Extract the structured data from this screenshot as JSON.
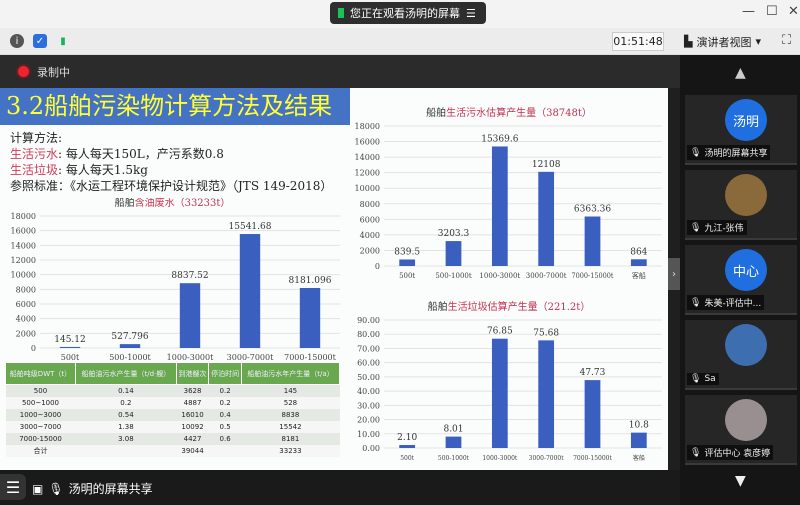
{
  "window": {
    "notice": "您正在观看汤明的屏幕",
    "minimize": "—",
    "maximize": "☐",
    "close": "✕"
  },
  "toolbar": {
    "timer": "01:51:48",
    "view_button": "演讲者视图",
    "view_caret": "▾",
    "fullscreen": "⛶"
  },
  "recording": {
    "label": "录制中"
  },
  "slide": {
    "title": "3.2船舶污染物计算方法及结果",
    "method_heading": "计算方法:",
    "lines": [
      {
        "label": "生活污水",
        "text": ":  每人每天150L，产污系数0.8"
      },
      {
        "label": "生活垃圾",
        "text": ":  每人每天1.5kg"
      },
      {
        "label": "",
        "text": "参照标准：《水运工程环境保护设计规范》（JTS 149-2018）"
      }
    ],
    "table": {
      "headers": [
        "船舶吨级DWT（t）",
        "船舶油污水产生量（t/d·艘）",
        "到港艘次",
        "停泊时间",
        "船舶油污水年产生量（t/a）"
      ],
      "rows": [
        [
          "500",
          "0.14",
          "3628",
          "0.2",
          "145"
        ],
        [
          "500~1000",
          "0.2",
          "4887",
          "0.2",
          "528"
        ],
        [
          "1000~3000",
          "0.54",
          "16010",
          "0.4",
          "8838"
        ],
        [
          "3000~7000",
          "1.38",
          "10092",
          "0.5",
          "15542"
        ],
        [
          "7000-15000",
          "3.08",
          "4427",
          "0.6",
          "8181"
        ],
        [
          "合计",
          "",
          "39044",
          "",
          "33233"
        ]
      ]
    }
  },
  "chart_data": [
    {
      "type": "bar",
      "title_pre": "船舶",
      "title_red": "含油废水",
      "title_post": "（33233t）",
      "categories": [
        "500t",
        "500-1000t",
        "1000-3000t",
        "3000-7000t",
        "7000-15000t"
      ],
      "values": [
        145.12,
        527.796,
        8837.52,
        15541.68,
        8181.096
      ],
      "labels": [
        "145.12",
        "527.796",
        "8837.52",
        "15541.68",
        "8181.096"
      ],
      "ylim": [
        0,
        18000
      ],
      "yticks": [
        "0",
        "2000",
        "4000",
        "6000",
        "8000",
        "10000",
        "12000",
        "14000",
        "16000",
        "18000"
      ],
      "color": "#3a5fbf"
    },
    {
      "type": "bar",
      "title_pre": "船舶",
      "title_red": "生活污水",
      "title_post": "估算产生量（38748t）",
      "categories": [
        "500t",
        "500-1000t",
        "1000-3000t",
        "3000-7000t",
        "7000-15000t",
        "客船"
      ],
      "values": [
        839.5,
        3203.3,
        15369.6,
        12108,
        6363.36,
        864
      ],
      "labels": [
        "839.5",
        "3203.3",
        "15369.6",
        "12108",
        "6363.36",
        "864"
      ],
      "ylim": [
        0,
        18000
      ],
      "yticks": [
        "0",
        "2000",
        "4000",
        "6000",
        "8000",
        "10000",
        "12000",
        "14000",
        "16000",
        "18000"
      ],
      "color": "#3a5fbf"
    },
    {
      "type": "bar",
      "title_pre": "船舶",
      "title_red": "生活垃圾",
      "title_post": "估算产生量（221.2t）",
      "categories": [
        "500t",
        "500-1000t",
        "1000-3000t",
        "3000-7000t",
        "7000-15000t",
        "客船"
      ],
      "values": [
        2.1,
        8.01,
        76.85,
        75.68,
        47.73,
        10.8
      ],
      "labels": [
        "2.10",
        "8.01",
        "76.85",
        "75.68",
        "47.73",
        "10.8"
      ],
      "ylim": [
        0,
        90
      ],
      "yticks": [
        "0.00",
        "10.00",
        "20.00",
        "30.00",
        "40.00",
        "50.00",
        "60.00",
        "70.00",
        "80.00",
        "90.00"
      ],
      "color": "#3a5fbf"
    }
  ],
  "participants": [
    {
      "avatar": "汤明",
      "name": "汤明的屏幕共享",
      "color": "#1f6fe0"
    },
    {
      "avatar": "",
      "name": "九江-张伟",
      "color": "#8a6a3a"
    },
    {
      "avatar": "中心",
      "name": "朱美-评估中...",
      "color": "#1f6fe0"
    },
    {
      "avatar": "",
      "name": "Sa",
      "color": "#3d6fb0"
    },
    {
      "avatar": "",
      "name": "评估中心 袁彦婷",
      "color": "#9a8f90"
    }
  ],
  "bottom": {
    "share_label": "汤明的屏幕共享"
  }
}
